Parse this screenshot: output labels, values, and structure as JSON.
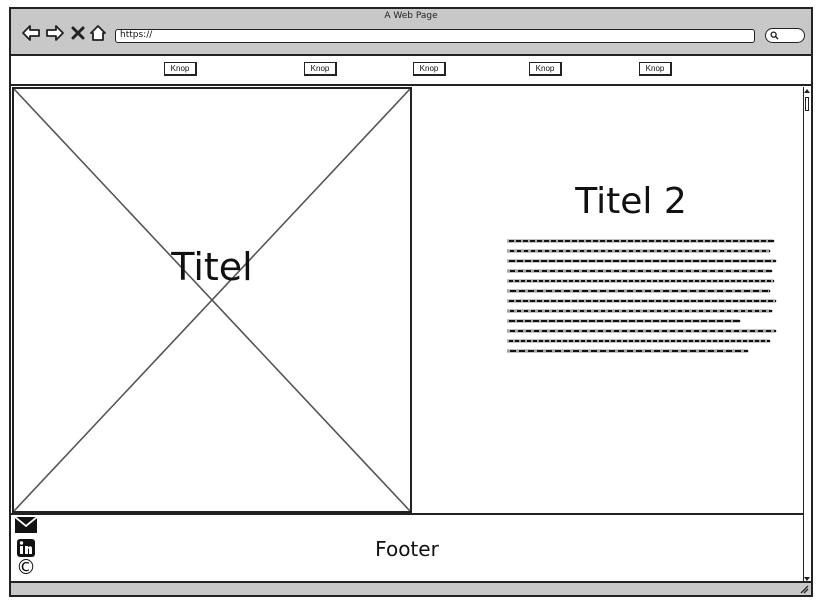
{
  "window": {
    "title": "A Web Page",
    "url": "https://"
  },
  "icons": {
    "back": "back-arrow-icon",
    "forward": "forward-arrow-icon",
    "close": "close-icon",
    "home": "home-icon",
    "search": "search-icon",
    "email": "email-icon",
    "linkedin": "linkedin-icon",
    "copyright": "copyright-icon"
  },
  "menu": {
    "buttons": [
      "Knop",
      "Knop",
      "Knop",
      "Knop",
      "Knop"
    ]
  },
  "hero": {
    "title": "Titel"
  },
  "content": {
    "title": "Titel 2"
  },
  "footer": {
    "label": "Footer",
    "copyright_symbol": "©"
  },
  "colors": {
    "chrome": "#c8c8c8",
    "stroke": "#222222",
    "background": "#ffffff"
  }
}
